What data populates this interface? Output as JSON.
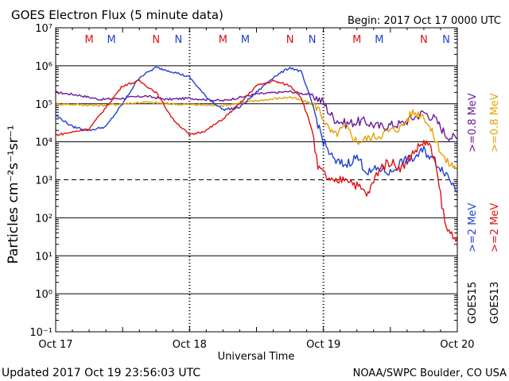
{
  "header": {
    "title": "GOES Electron Flux (5 minute data)",
    "begin": "Begin: 2017 Oct 17 0000 UTC"
  },
  "footer": {
    "updated": "Updated 2017 Oct 19 23:56:03 UTC",
    "source": "NOAA/SWPC Boulder, CO USA"
  },
  "colors": {
    "goes15_2mev": "#1f3fd0",
    "goes13_2mev": "#e01010",
    "goes15_08mev": "#6a1a9a",
    "goes13_08mev": "#e8a000",
    "marker_m": "#e01010",
    "marker_n": "#1f3fd0"
  },
  "chart_data": {
    "type": "line",
    "title": "GOES Electron Flux (5 minute data)",
    "xlabel": "Universal Time",
    "ylabel": "Particles cm⁻²s⁻¹sr⁻¹",
    "y_scale": "log",
    "ylim": [
      0.1,
      10000000
    ],
    "xlim": [
      "2017-10-17 00:00",
      "2017-10-20 00:00"
    ],
    "x_ticks": [
      "Oct 17",
      "Oct 18",
      "Oct 19",
      "Oct 20"
    ],
    "y_ticks": [
      {
        "value": 10000000,
        "label": "10⁷"
      },
      {
        "value": 1000000,
        "label": "10⁶"
      },
      {
        "value": 100000,
        "label": "10⁵"
      },
      {
        "value": 10000,
        "label": "10⁴"
      },
      {
        "value": 1000,
        "label": "10³"
      },
      {
        "value": 100,
        "label": "10²"
      },
      {
        "value": 10,
        "label": "10¹"
      },
      {
        "value": 1,
        "label": "10⁰"
      },
      {
        "value": 0.1,
        "label": "10⁻¹"
      }
    ],
    "dashed_level": 1000,
    "markers": [
      {
        "label": "M",
        "time": "2017-10-17 06:00",
        "color": "red"
      },
      {
        "label": "M",
        "time": "2017-10-17 10:00",
        "color": "blue"
      },
      {
        "label": "N",
        "time": "2017-10-17 18:00",
        "color": "red"
      },
      {
        "label": "N",
        "time": "2017-10-17 22:00",
        "color": "blue"
      },
      {
        "label": "M",
        "time": "2017-10-18 06:00",
        "color": "red"
      },
      {
        "label": "M",
        "time": "2017-10-18 10:00",
        "color": "blue"
      },
      {
        "label": "N",
        "time": "2017-10-18 18:00",
        "color": "red"
      },
      {
        "label": "N",
        "time": "2017-10-18 22:00",
        "color": "blue"
      },
      {
        "label": "M",
        "time": "2017-10-19 06:00",
        "color": "red"
      },
      {
        "label": "M",
        "time": "2017-10-19 10:00",
        "color": "blue"
      },
      {
        "label": "N",
        "time": "2017-10-19 18:00",
        "color": "red"
      },
      {
        "label": "N",
        "time": "2017-10-19 22:00",
        "color": "blue"
      }
    ],
    "legend": {
      "left_group": "GOES15",
      "right_group": "GOES13",
      "entries": [
        {
          "group": "GOES15",
          "label": ">=2 MeV",
          "color": "blue"
        },
        {
          "group": "GOES15",
          "label": ">=0.8 MeV",
          "color": "purple"
        },
        {
          "group": "GOES13",
          "label": ">=2 MeV",
          "color": "red"
        },
        {
          "group": "GOES13",
          "label": ">=0.8 MeV",
          "color": "orange"
        }
      ]
    },
    "series": [
      {
        "name": "GOES15 >=0.8 MeV",
        "color": "purple",
        "x_hours": [
          0,
          4,
          8,
          12,
          16,
          20,
          24,
          30,
          36,
          42,
          46,
          48,
          49,
          50,
          52,
          55,
          58,
          62,
          66,
          68,
          70,
          72
        ],
        "values": [
          200000,
          170000,
          130000,
          140000,
          160000,
          130000,
          140000,
          120000,
          180000,
          210000,
          170000,
          110000,
          60000,
          40000,
          30000,
          35000,
          25000,
          30000,
          60000,
          40000,
          15000,
          12000
        ]
      },
      {
        "name": "GOES13 >=0.8 MeV",
        "color": "orange",
        "x_hours": [
          0,
          4,
          8,
          12,
          16,
          20,
          24,
          30,
          36,
          42,
          46,
          47,
          48,
          49,
          50,
          52,
          54,
          58,
          62,
          64,
          66,
          68,
          70,
          72
        ],
        "values": [
          100000,
          95000,
          90000,
          100000,
          110000,
          100000,
          95000,
          90000,
          120000,
          150000,
          100000,
          80000,
          40000,
          20000,
          15000,
          25000,
          10000,
          15000,
          25000,
          60000,
          50000,
          12000,
          3000,
          2000
        ]
      },
      {
        "name": "GOES15 >=2 MeV",
        "color": "blue",
        "x_hours": [
          0,
          3,
          6,
          9,
          12,
          15,
          18,
          21,
          24,
          27,
          30,
          33,
          36,
          39,
          42,
          44,
          46,
          47,
          48,
          50,
          52,
          54,
          56,
          58,
          60,
          62,
          64,
          66,
          68,
          70,
          72
        ],
        "values": [
          50000,
          25000,
          20000,
          25000,
          100000,
          500000,
          900000,
          700000,
          500000,
          150000,
          70000,
          80000,
          200000,
          500000,
          900000,
          700000,
          100000,
          30000,
          10000,
          3000,
          2500,
          4000,
          1500,
          2000,
          1500,
          3000,
          3500,
          6000,
          3000,
          1500,
          500
        ]
      },
      {
        "name": "GOES13 >=2 MeV",
        "color": "red",
        "x_hours": [
          0,
          3,
          6,
          9,
          12,
          15,
          18,
          21,
          24,
          27,
          30,
          33,
          36,
          39,
          42,
          44,
          46,
          47,
          48,
          49,
          50,
          52,
          54,
          56,
          58,
          60,
          62,
          64,
          66,
          67,
          68,
          70,
          72
        ],
        "values": [
          15000,
          18000,
          22000,
          80000,
          300000,
          400000,
          200000,
          40000,
          15000,
          20000,
          40000,
          100000,
          300000,
          400000,
          300000,
          150000,
          20000,
          2000,
          1500,
          1000,
          800,
          1200,
          700,
          400,
          2000,
          3000,
          2000,
          5000,
          10000,
          8000,
          3000,
          50,
          30
        ]
      }
    ]
  }
}
